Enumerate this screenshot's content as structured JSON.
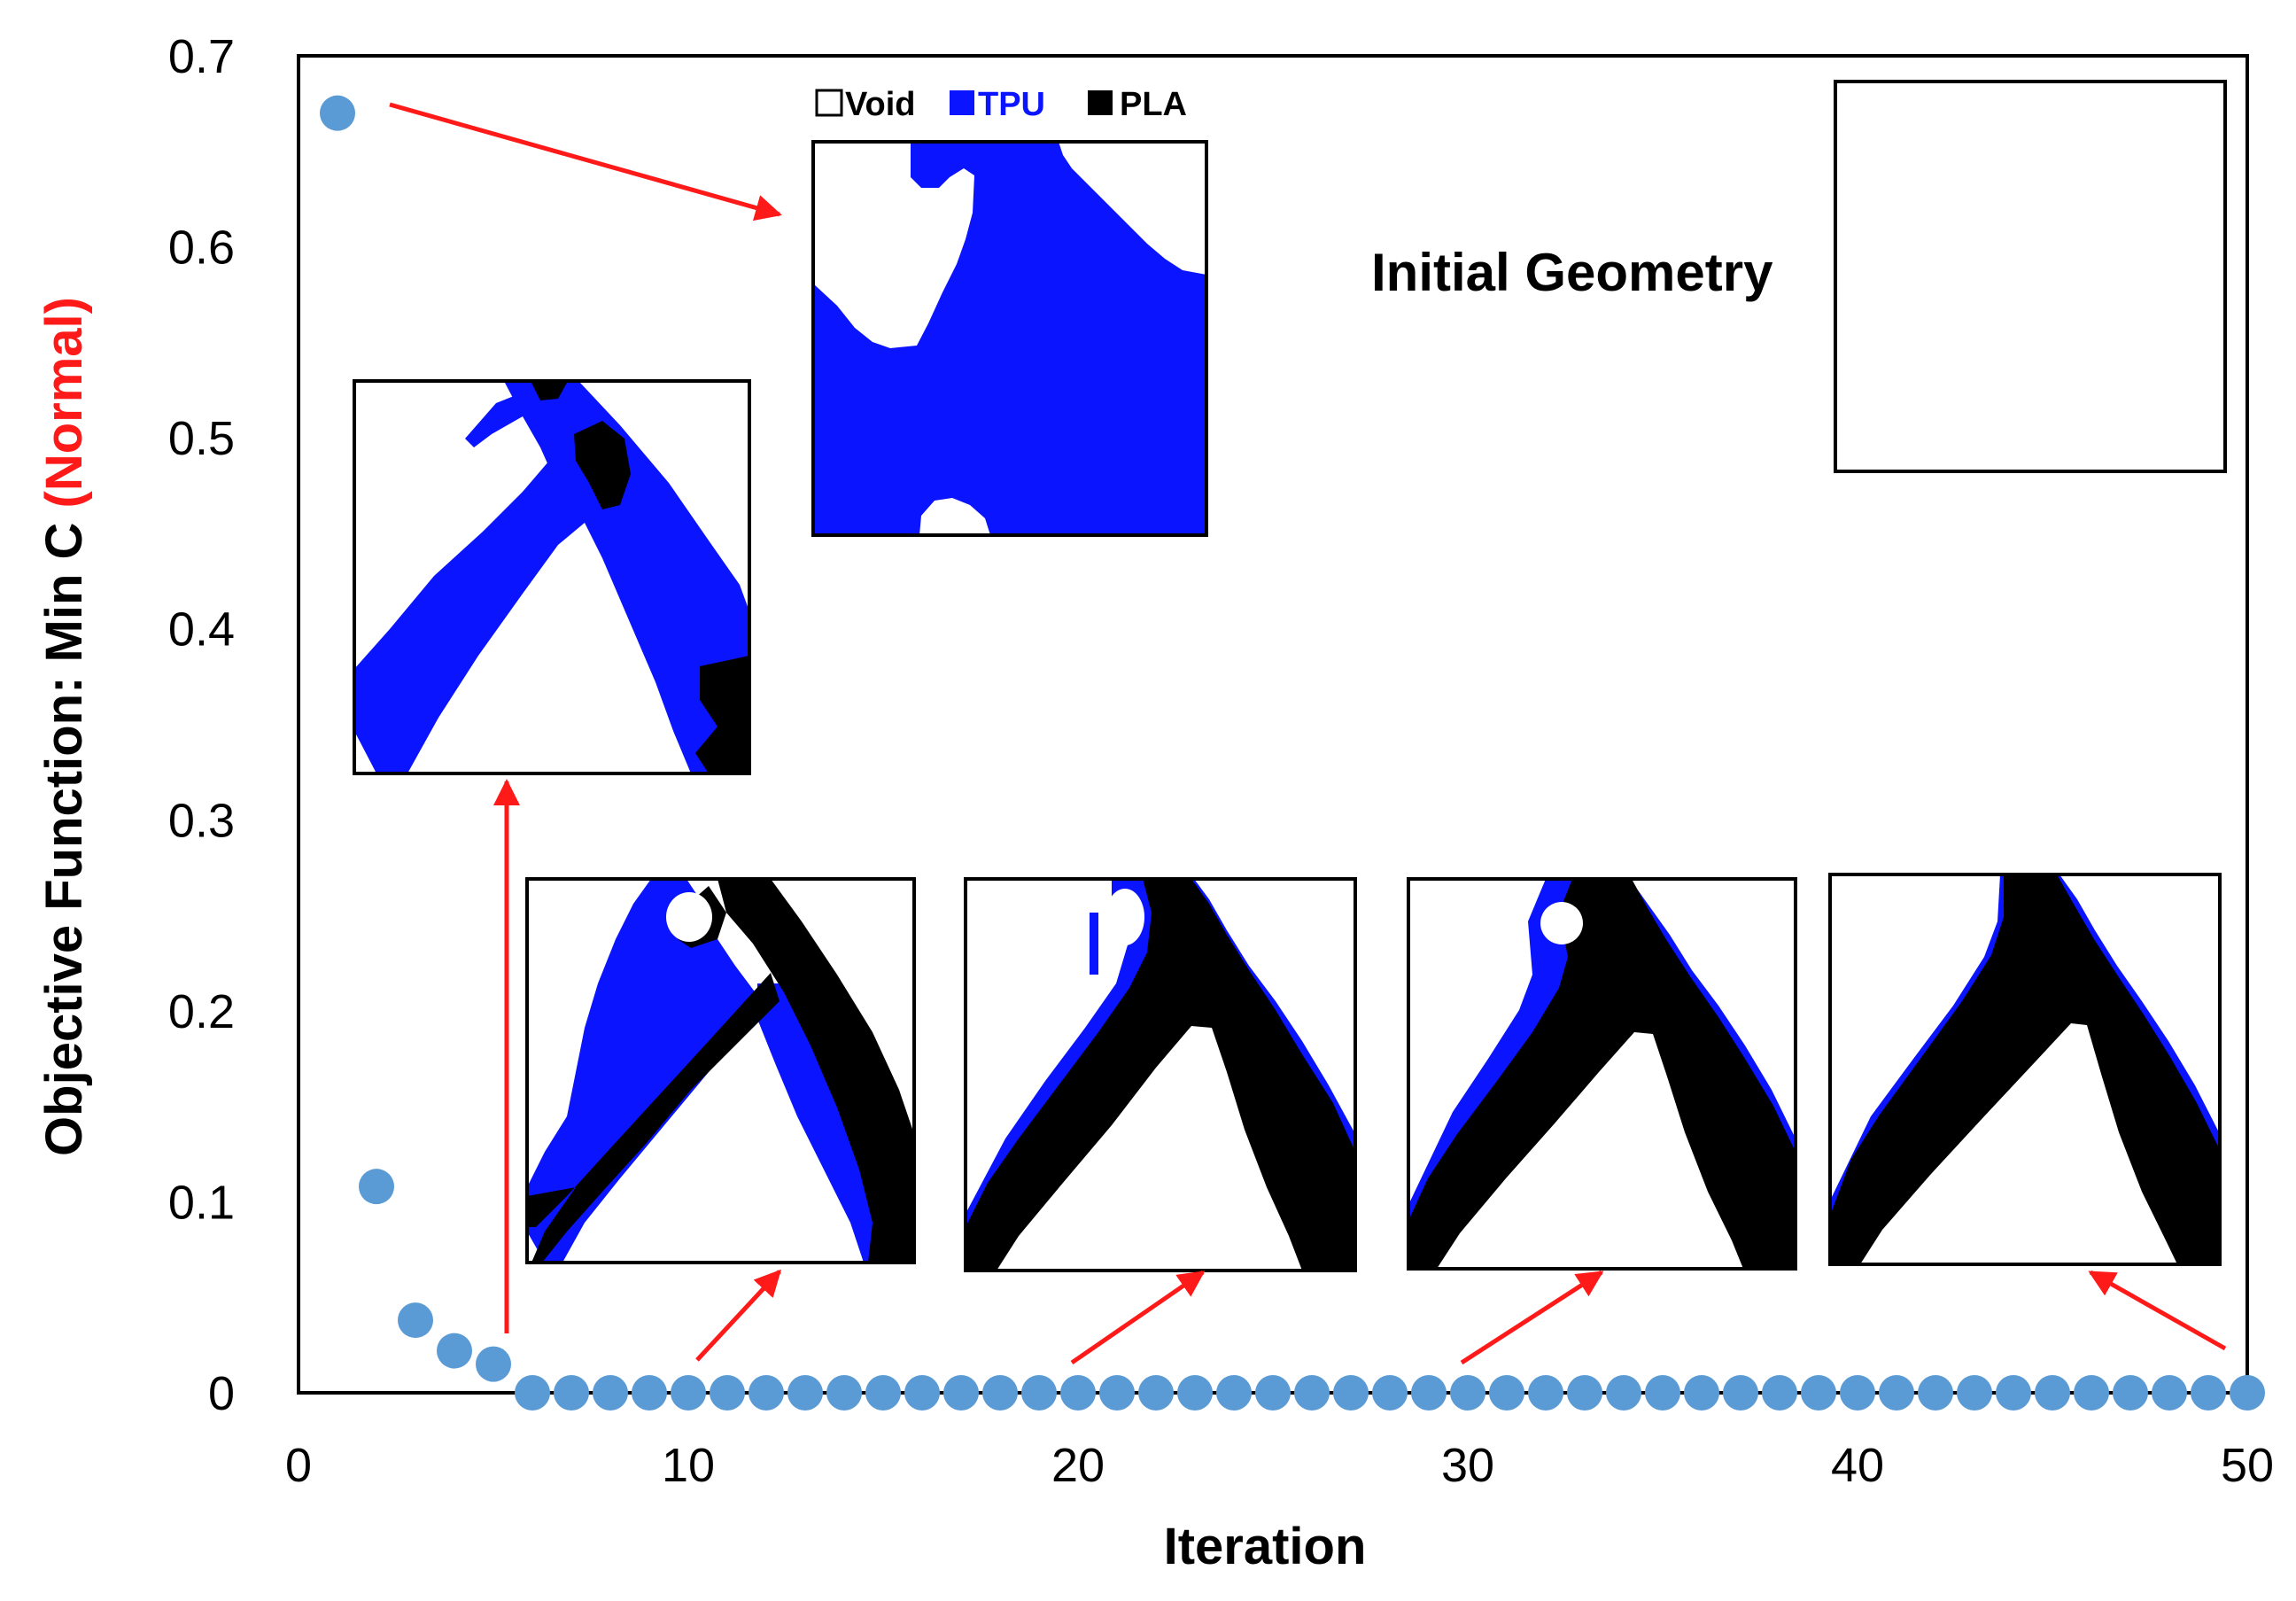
{
  "colors": {
    "point": "#5b9bd5",
    "tpu": "#0a14ff",
    "pla": "#000000",
    "void": "#ffffff",
    "arrow": "#ff1a1a",
    "ylabel_accent": "#ff1a1a"
  },
  "legend": {
    "void": "Void",
    "tpu": "TPU",
    "pla": "PLA"
  },
  "annotation": {
    "initial_geometry": "Initial Geometry"
  },
  "chart_data": {
    "type": "scatter",
    "xlabel": "Iteration",
    "ylabel_main": "Objective Function: Min C ",
    "ylabel_accent": "(Normal)",
    "xlim": [
      0,
      50
    ],
    "ylim": [
      0,
      0.7
    ],
    "x_ticks": [
      "0",
      "10",
      "20",
      "30",
      "40",
      "50"
    ],
    "y_ticks": [
      "0",
      "0.1",
      "0.2",
      "0.3",
      "0.4",
      "0.5",
      "0.6",
      "0.7"
    ],
    "grid": false,
    "series": [
      {
        "x": [
          1,
          2,
          3,
          4,
          5,
          6,
          7,
          8,
          9,
          10,
          11,
          12,
          13,
          14,
          15,
          16,
          17,
          18,
          19,
          20,
          21,
          22,
          23,
          24,
          25,
          26,
          27,
          28,
          29,
          30,
          31,
          32,
          33,
          34,
          35,
          36,
          37,
          38,
          39,
          40,
          41,
          42,
          43,
          44,
          45,
          46,
          47,
          48,
          49,
          50
        ],
        "y": [
          0.67,
          0.108,
          0.038,
          0.022,
          0.015,
          0,
          0,
          0,
          0,
          0,
          0,
          0,
          0,
          0,
          0,
          0,
          0,
          0,
          0,
          0,
          0,
          0,
          0,
          0,
          0,
          0,
          0,
          0,
          0,
          0,
          0,
          0,
          0,
          0,
          0,
          0,
          0,
          0,
          0,
          0,
          0,
          0,
          0,
          0,
          0,
          0,
          0,
          0,
          0,
          0
        ]
      }
    ]
  }
}
